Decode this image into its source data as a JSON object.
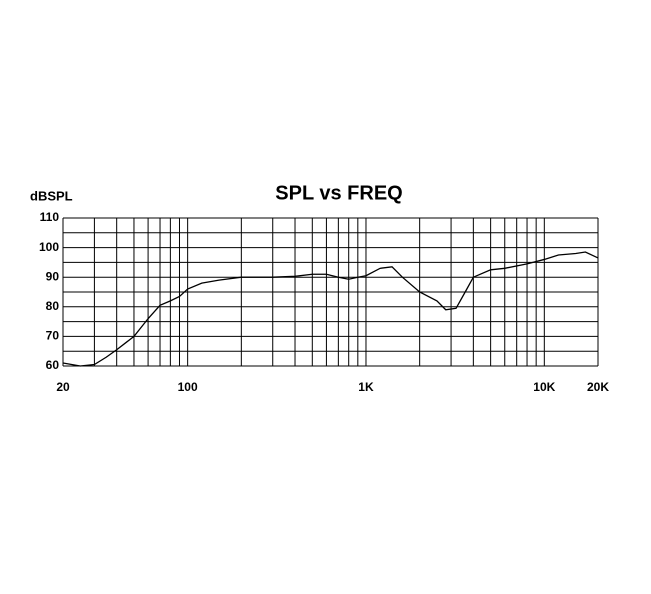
{
  "chart_data": {
    "type": "line",
    "title": "SPL vs FREQ",
    "y_label": "dBSPL",
    "x_scale": "log",
    "color": "#000000",
    "x": [
      20,
      25,
      30,
      35,
      40,
      50,
      60,
      70,
      80,
      90,
      100,
      120,
      150,
      200,
      300,
      400,
      500,
      600,
      700,
      800,
      900,
      1000,
      1200,
      1400,
      1600,
      2000,
      2500,
      2800,
      3200,
      3600,
      4000,
      5000,
      6000,
      8000,
      10000,
      12000,
      15000,
      17000,
      20000
    ],
    "values": [
      61,
      60,
      60.5,
      63,
      65.5,
      70,
      76,
      80.5,
      82,
      83.5,
      86,
      88,
      89,
      90,
      90,
      90.3,
      91,
      91,
      90,
      89.3,
      90,
      90.5,
      93,
      93.5,
      90,
      85,
      82,
      79,
      79.5,
      85,
      90,
      92.5,
      93,
      94.5,
      96,
      97.5,
      98,
      98.5,
      96.5
    ],
    "xlim": [
      20,
      20000
    ],
    "ylim": [
      60,
      110
    ],
    "xticks": [
      20,
      100,
      {
        "value": 1000,
        "label": "1K"
      },
      {
        "value": 10000,
        "label": "10K"
      },
      {
        "value": 20000,
        "label": "20K"
      }
    ],
    "yticks": [
      60,
      70,
      80,
      90,
      100,
      110
    ],
    "x_grid": [
      30,
      40,
      50,
      60,
      70,
      80,
      90,
      200,
      300,
      400,
      500,
      600,
      700,
      800,
      900,
      2000,
      3000,
      4000,
      5000,
      6000,
      7000,
      8000,
      9000
    ],
    "y_grid": [
      65,
      75,
      85,
      95,
      105
    ]
  }
}
